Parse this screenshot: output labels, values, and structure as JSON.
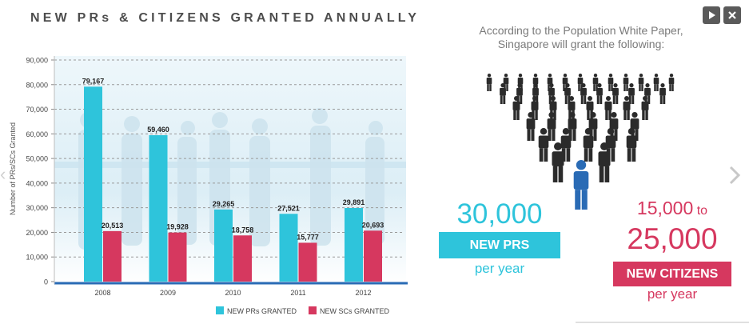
{
  "title": "NEW PRs & CITIZENS GRANTED ANNUALLY",
  "controls": {
    "play_icon": "play-icon",
    "close_icon": "close-icon"
  },
  "colors": {
    "teal": "#2ec4db",
    "red": "#d6385f",
    "title": "#4d4d4d",
    "figure_dark": "#2b2b2b",
    "figure_blue": "#2a6bb5"
  },
  "chart_data": {
    "type": "bar",
    "categories": [
      "2008",
      "2009",
      "2010",
      "2011",
      "2012"
    ],
    "series": [
      {
        "name": "NEW PRs GRANTED",
        "values": [
          79167,
          59460,
          29265,
          27521,
          29891
        ],
        "labels": [
          "79,167",
          "59,460",
          "29,265",
          "27,521",
          "29,891"
        ],
        "color": "#2ec4db"
      },
      {
        "name": "NEW SCs GRANTED",
        "values": [
          20513,
          19928,
          18758,
          15777,
          20693
        ],
        "labels": [
          "20,513",
          "19,928",
          "18,758",
          "15,777",
          "20,693"
        ],
        "color": "#d6385f"
      }
    ],
    "ylabel": "Number of PRs/SCs Granted",
    "ylim": [
      0,
      90000
    ],
    "yticks": [
      0,
      10000,
      20000,
      30000,
      40000,
      50000,
      60000,
      70000,
      80000,
      90000
    ],
    "ytick_labels": [
      "0",
      "10,000",
      "20,000",
      "30,000",
      "40,000",
      "50,000",
      "60,000",
      "70,000",
      "80,000",
      "90,000"
    ],
    "grid": true,
    "legend_position": "bottom"
  },
  "infographic": {
    "intro": "According to the Population White Paper, Singapore will grant the following:",
    "pr_number": "30,000",
    "pr_label": "NEW PRS",
    "pr_per": "per year",
    "citizens_low": "15,000",
    "citizens_to": "to",
    "citizens_high": "25,000",
    "citizens_label": "NEW CITIZENS",
    "citizens_per": "per year"
  }
}
